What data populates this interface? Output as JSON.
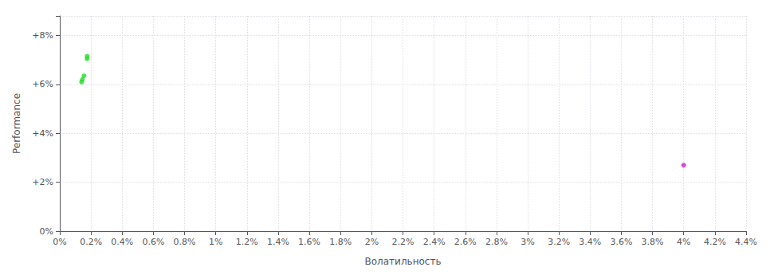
{
  "chart_data": {
    "type": "scatter",
    "xlabel": "Волатильность",
    "ylabel": "Performance",
    "xlim": [
      0.0,
      0.044
    ],
    "ylim": [
      0.0,
      0.088
    ],
    "xticks": [
      {
        "value": 0.0,
        "label": "0%"
      },
      {
        "value": 0.002,
        "label": "0.2%"
      },
      {
        "value": 0.004,
        "label": "0.4%"
      },
      {
        "value": 0.006,
        "label": "0.6%"
      },
      {
        "value": 0.008,
        "label": "0.8%"
      },
      {
        "value": 0.01,
        "label": "1%"
      },
      {
        "value": 0.012,
        "label": "1.2%"
      },
      {
        "value": 0.014,
        "label": "1.4%"
      },
      {
        "value": 0.016,
        "label": "1.6%"
      },
      {
        "value": 0.018,
        "label": "1.8%"
      },
      {
        "value": 0.02,
        "label": "2%"
      },
      {
        "value": 0.022,
        "label": "2.2%"
      },
      {
        "value": 0.024,
        "label": "2.4%"
      },
      {
        "value": 0.026,
        "label": "2.6%"
      },
      {
        "value": 0.028,
        "label": "2.8%"
      },
      {
        "value": 0.03,
        "label": "3%"
      },
      {
        "value": 0.032,
        "label": "3.2%"
      },
      {
        "value": 0.034,
        "label": "3.4%"
      },
      {
        "value": 0.036,
        "label": "3.6%"
      },
      {
        "value": 0.038,
        "label": "3.8%"
      },
      {
        "value": 0.04,
        "label": "4%"
      },
      {
        "value": 0.042,
        "label": "4.2%"
      },
      {
        "value": 0.044,
        "label": "4.4%"
      }
    ],
    "yticks": [
      {
        "value": 0.0,
        "label": "0%"
      },
      {
        "value": 0.02,
        "label": "+2%"
      },
      {
        "value": 0.04,
        "label": "+4%"
      },
      {
        "value": 0.06,
        "label": "+6%"
      },
      {
        "value": 0.08,
        "label": "+8%"
      }
    ],
    "grid": true,
    "series": [
      {
        "color": "#22dd22",
        "x": [
          0.00175,
          0.00175,
          0.00155,
          0.00145,
          0.0014
        ],
        "values": [
          0.0715,
          0.0705,
          0.0635,
          0.062,
          0.061
        ]
      },
      {
        "color": "#cc22cc",
        "x": [
          0.04
        ],
        "values": [
          0.027
        ]
      }
    ]
  }
}
